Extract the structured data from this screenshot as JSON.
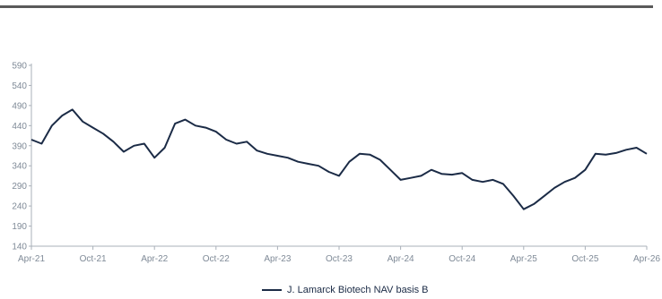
{
  "chart_data": {
    "type": "line",
    "title": "",
    "xlabel": "",
    "ylabel": "",
    "x_ticks": [
      "Apr-21",
      "Oct-21",
      "Apr-22",
      "Oct-22",
      "Apr-23",
      "Oct-23",
      "Apr-24",
      "Oct-24",
      "Apr-25",
      "Oct-25",
      "Apr-26"
    ],
    "y_ticks": [
      140,
      190,
      240,
      290,
      340,
      390,
      440,
      490,
      540,
      590
    ],
    "ylim": [
      140,
      590
    ],
    "xlim": [
      "2021-04",
      "2026-04"
    ],
    "grid": false,
    "legend_position": "bottom",
    "series": [
      {
        "name": "J. Lamarck Biotech NAV basis B",
        "color": "#1b2b46",
        "x": [
          "2021-04",
          "2021-05",
          "2021-06",
          "2021-07",
          "2021-08",
          "2021-09",
          "2021-10",
          "2021-11",
          "2021-12",
          "2022-01",
          "2022-02",
          "2022-03",
          "2022-04",
          "2022-05",
          "2022-06",
          "2022-07",
          "2022-08",
          "2022-09",
          "2022-10",
          "2022-11",
          "2022-12",
          "2023-01",
          "2023-02",
          "2023-03",
          "2023-04",
          "2023-05",
          "2023-06",
          "2023-07",
          "2023-08",
          "2023-09",
          "2023-10",
          "2023-11",
          "2023-12",
          "2024-01",
          "2024-02",
          "2024-03",
          "2024-04",
          "2024-05",
          "2024-06",
          "2024-07",
          "2024-08",
          "2024-09",
          "2024-10",
          "2024-11",
          "2024-12",
          "2025-01",
          "2025-02",
          "2025-03",
          "2025-04",
          "2025-05",
          "2025-06",
          "2025-07",
          "2025-08",
          "2025-09",
          "2025-10",
          "2025-11",
          "2025-12",
          "2026-01",
          "2026-02",
          "2026-03",
          "2026-04"
        ],
        "values": [
          405,
          395,
          440,
          465,
          480,
          450,
          435,
          420,
          400,
          375,
          390,
          395,
          360,
          385,
          445,
          455,
          440,
          435,
          425,
          405,
          395,
          400,
          378,
          370,
          365,
          360,
          350,
          345,
          340,
          325,
          315,
          350,
          370,
          368,
          355,
          330,
          305,
          310,
          315,
          330,
          320,
          318,
          322,
          305,
          300,
          305,
          295,
          265,
          232,
          245,
          265,
          285,
          300,
          310,
          330,
          370,
          368,
          372,
          380,
          385,
          370
        ]
      }
    ]
  }
}
